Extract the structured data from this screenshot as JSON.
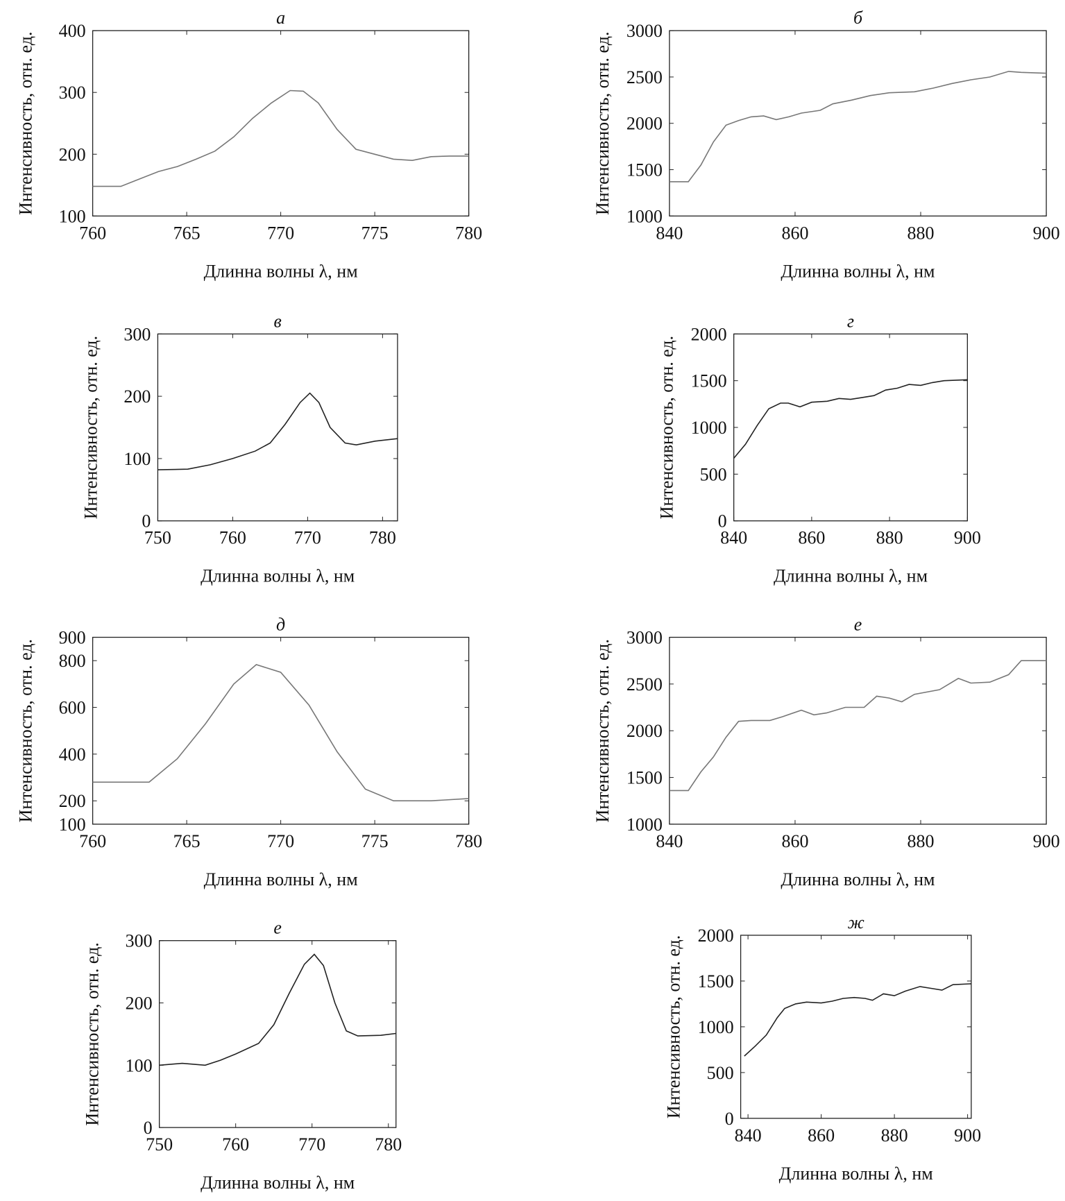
{
  "chart_data": [
    {
      "type": "line",
      "title": "а",
      "x_label": "Длинна волны λ, нм",
      "y_label": "Интенсивность, отн. ед.",
      "color": "#777777",
      "xlim": [
        760,
        780
      ],
      "ylim": [
        100,
        400
      ],
      "xticks": [
        760,
        765,
        770,
        775,
        780
      ],
      "yticks": [
        100,
        200,
        300,
        400
      ],
      "series": [
        {
          "x": [
            760,
            761.5,
            762.5,
            763.5,
            764.5,
            765.5,
            766.5,
            767.5,
            768.5,
            769.5,
            770.5,
            771.2,
            772,
            773,
            774,
            775,
            776,
            777,
            778,
            779,
            780
          ],
          "values": [
            148,
            148,
            160,
            172,
            180,
            192,
            205,
            228,
            258,
            283,
            303,
            302,
            283,
            240,
            208,
            200,
            192,
            190,
            196,
            197,
            197
          ]
        }
      ]
    },
    {
      "type": "line",
      "title": "б",
      "x_label": "Длинна волны λ, нм",
      "y_label": "Интенсивность, отн. ед.",
      "color": "#777777",
      "xlim": [
        840,
        900
      ],
      "ylim": [
        1000,
        3000
      ],
      "xticks": [
        840,
        860,
        880,
        900
      ],
      "yticks": [
        1000,
        1500,
        2000,
        2500,
        3000
      ],
      "series": [
        {
          "x": [
            840,
            843,
            845,
            847,
            849,
            851,
            853,
            855,
            857,
            859,
            861,
            864,
            866,
            869,
            872,
            875,
            879,
            882,
            885,
            888,
            891,
            894,
            896,
            900
          ],
          "values": [
            1370,
            1370,
            1550,
            1800,
            1980,
            2030,
            2070,
            2080,
            2040,
            2070,
            2110,
            2140,
            2210,
            2250,
            2300,
            2330,
            2340,
            2380,
            2430,
            2470,
            2500,
            2560,
            2550,
            2540
          ]
        }
      ]
    },
    {
      "type": "line",
      "title": "в",
      "x_label": "Длинна волны λ, нм",
      "y_label": "Интенсивность, отн. ед.",
      "color": "#222222",
      "xlim": [
        750,
        782
      ],
      "ylim": [
        0,
        300
      ],
      "xticks": [
        750,
        760,
        770,
        780
      ],
      "yticks": [
        0,
        100,
        200,
        300
      ],
      "series": [
        {
          "x": [
            750,
            754,
            757,
            760,
            763,
            765,
            767,
            769,
            770.3,
            771.5,
            773,
            775,
            776.5,
            779,
            782
          ],
          "values": [
            82,
            83,
            90,
            100,
            112,
            125,
            155,
            190,
            205,
            190,
            150,
            125,
            122,
            128,
            132
          ]
        }
      ]
    },
    {
      "type": "line",
      "title": "г",
      "x_label": "Длинна волны λ, нм",
      "y_label": "Интенсивность, отн. ед.",
      "color": "#222222",
      "xlim": [
        840,
        900
      ],
      "ylim": [
        0,
        2000
      ],
      "xticks": [
        840,
        860,
        880,
        900
      ],
      "yticks": [
        0,
        500,
        1000,
        1500,
        2000
      ],
      "series": [
        {
          "x": [
            840,
            843,
            846,
            849,
            852,
            854,
            857,
            860,
            864,
            867,
            870,
            873,
            876,
            879,
            882,
            885,
            888,
            891,
            894,
            900
          ],
          "values": [
            670,
            820,
            1020,
            1200,
            1260,
            1260,
            1220,
            1270,
            1280,
            1310,
            1300,
            1320,
            1340,
            1400,
            1420,
            1460,
            1450,
            1480,
            1500,
            1510
          ]
        }
      ]
    },
    {
      "type": "line",
      "title": "д",
      "x_label": "Длинна волны λ, нм",
      "y_label": "Интенсивность, отн. ед.",
      "color": "#777777",
      "xlim": [
        760,
        780
      ],
      "ylim": [
        100,
        900
      ],
      "xticks": [
        760,
        765,
        770,
        775,
        780
      ],
      "yticks": [
        100,
        200,
        400,
        600,
        800,
        900
      ],
      "series": [
        {
          "x": [
            760,
            763,
            764.5,
            766,
            767.5,
            768.7,
            770,
            771.5,
            773,
            774.5,
            776,
            778,
            780
          ],
          "values": [
            280,
            280,
            380,
            530,
            700,
            783,
            750,
            610,
            410,
            250,
            200,
            200,
            210
          ]
        }
      ]
    },
    {
      "type": "line",
      "title": "е",
      "x_label": "Длинна волны λ, нм",
      "y_label": "Интенсивность, отн. ед.",
      "color": "#777777",
      "xlim": [
        840,
        900
      ],
      "ylim": [
        1000,
        3000
      ],
      "xticks": [
        840,
        860,
        880,
        900
      ],
      "yticks": [
        1000,
        1500,
        2000,
        2500,
        3000
      ],
      "series": [
        {
          "x": [
            840,
            843,
            845,
            847,
            849,
            851,
            853,
            856,
            858,
            861,
            863,
            865,
            868,
            871,
            873,
            875,
            877,
            879,
            883,
            886,
            888,
            891,
            894,
            896,
            900
          ],
          "values": [
            1360,
            1360,
            1560,
            1720,
            1930,
            2100,
            2110,
            2110,
            2150,
            2220,
            2170,
            2190,
            2250,
            2250,
            2370,
            2350,
            2310,
            2390,
            2440,
            2560,
            2510,
            2520,
            2600,
            2750,
            2750
          ]
        }
      ]
    },
    {
      "type": "line",
      "title": "е",
      "x_label": "Длинна волны λ, нм",
      "y_label": "Интенсивность, отн. ед.",
      "color": "#222222",
      "xlim": [
        750,
        781
      ],
      "ylim": [
        0,
        300
      ],
      "xticks": [
        750,
        760,
        770,
        780
      ],
      "yticks": [
        0,
        100,
        200,
        300
      ],
      "series": [
        {
          "x": [
            750,
            753,
            756,
            758,
            760,
            763,
            765,
            767,
            769,
            770.3,
            771.5,
            773,
            774.5,
            776,
            779,
            781
          ],
          "values": [
            100,
            103,
            100,
            108,
            118,
            135,
            165,
            215,
            262,
            278,
            260,
            200,
            155,
            147,
            148,
            151
          ]
        }
      ]
    },
    {
      "type": "line",
      "title": "ж",
      "x_label": "Длинна волны λ, нм",
      "y_label": "Интенсивность, отн. ед.",
      "color": "#222222",
      "xlim": [
        838,
        901
      ],
      "ylim": [
        0,
        2000
      ],
      "xticks": [
        840,
        860,
        880,
        900
      ],
      "yticks": [
        0,
        500,
        1000,
        1500,
        2000
      ],
      "series": [
        {
          "x": [
            839,
            842,
            845,
            848,
            850,
            853,
            856,
            860,
            863,
            866,
            869,
            872,
            874,
            877,
            880,
            883,
            887,
            890,
            893,
            896,
            901
          ],
          "values": [
            680,
            790,
            910,
            1100,
            1200,
            1250,
            1270,
            1260,
            1280,
            1310,
            1320,
            1310,
            1290,
            1360,
            1340,
            1390,
            1440,
            1420,
            1400,
            1460,
            1470
          ]
        }
      ]
    }
  ]
}
